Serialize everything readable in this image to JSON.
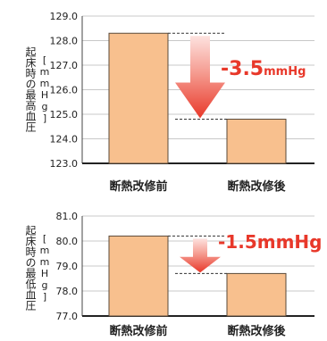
{
  "chart_data": [
    {
      "type": "bar",
      "ylabel": "起床時の最高血圧",
      "yunit": "[mmHg]",
      "categories": [
        "断熱改修前",
        "断熱改修後"
      ],
      "values": [
        128.3,
        124.8
      ],
      "ylim": [
        123.0,
        129.0
      ],
      "yticks": [
        "123.0",
        "124.0",
        "125.0",
        "126.0",
        "127.0",
        "128.0",
        "129.0"
      ],
      "grid": true,
      "annotation": {
        "text": "-3.5",
        "unit": "mmHg"
      }
    },
    {
      "type": "bar",
      "ylabel": "起床時の最低血圧",
      "yunit": "[mmHg]",
      "categories": [
        "断熱改修前",
        "断熱改修後"
      ],
      "values": [
        80.2,
        78.7
      ],
      "ylim": [
        77.0,
        81.0
      ],
      "yticks": [
        "77.0",
        "78.0",
        "79.0",
        "80.0",
        "81.0"
      ],
      "grid": true,
      "annotation": {
        "text": "-1.5mmHg",
        "unit": ""
      }
    }
  ],
  "colors": {
    "bar_fill": "#f8c08e",
    "bar_stroke": "#5a4a3a",
    "grid": "#c8c8c8",
    "arrow": "#e8382a",
    "arrow_light": "#f5a8a0",
    "annotation": "#e8382a",
    "text": "#222222"
  }
}
